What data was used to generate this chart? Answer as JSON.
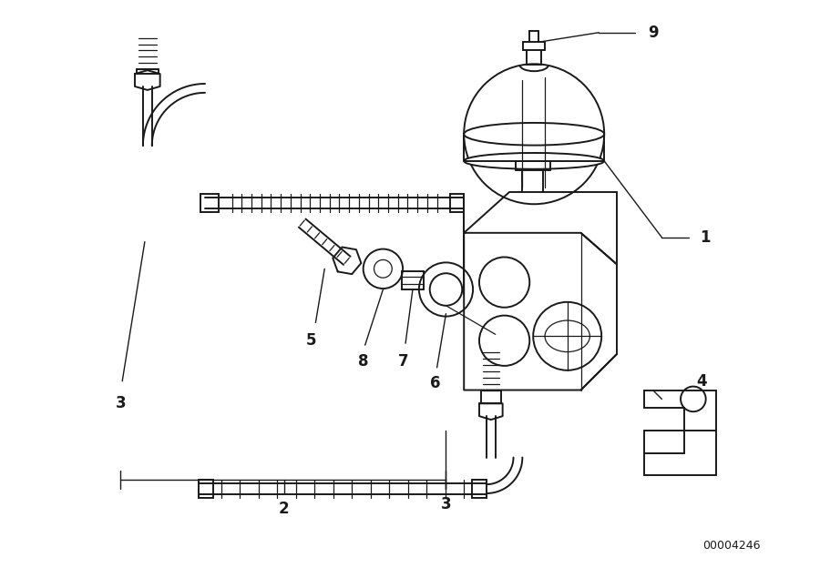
{
  "background_color": "#ffffff",
  "line_color": "#1a1a1a",
  "diagram_id": "00004246",
  "fig_width": 9.0,
  "fig_height": 6.35,
  "dpi": 100
}
